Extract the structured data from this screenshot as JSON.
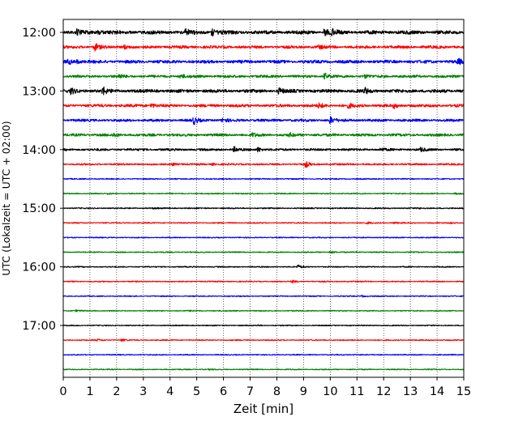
{
  "chart_data": {
    "type": "line",
    "chart_kind": "seismogram helicorder",
    "xlabel": "Zeit  [min]",
    "ylabel": "UTC (Lokalzeit = UTC + 02:00)",
    "xlim": [
      0,
      15
    ],
    "x_ticks": [
      "0",
      "1",
      "2",
      "3",
      "4",
      "5",
      "6",
      "7",
      "8",
      "9",
      "10",
      "11",
      "12",
      "13",
      "14",
      "15"
    ],
    "y_ticks": [
      "12:00",
      "13:00",
      "14:00",
      "15:00",
      "16:00",
      "17:00"
    ],
    "x_grid": "dotted vertical lines at every minute",
    "trace_colors": [
      "#000000",
      "#ff0000",
      "#0000ff",
      "#008000"
    ],
    "traces": [
      {
        "start": "12:00",
        "amplitude": 4.2,
        "events": [
          {
            "x": 0.5,
            "a": 3
          },
          {
            "x": 1.3,
            "a": 2.5
          },
          {
            "x": 4.6,
            "a": 3
          },
          {
            "x": 5.6,
            "a": 3
          },
          {
            "x": 9.8,
            "a": 3
          },
          {
            "x": 10.1,
            "a": 3
          }
        ]
      },
      {
        "start": "12:15",
        "amplitude": 3.2,
        "events": [
          {
            "x": 1.2,
            "a": 5
          },
          {
            "x": 2.3,
            "a": 3
          },
          {
            "x": 9.6,
            "a": 2
          }
        ]
      },
      {
        "start": "12:30",
        "amplitude": 3.6,
        "events": [
          {
            "x": 0.2,
            "a": 3
          },
          {
            "x": 0.5,
            "a": 2
          },
          {
            "x": 14.8,
            "a": 3
          }
        ]
      },
      {
        "start": "12:45",
        "amplitude": 3.0,
        "events": [
          {
            "x": 2.1,
            "a": 2.5
          },
          {
            "x": 4.4,
            "a": 3
          },
          {
            "x": 9.8,
            "a": 4
          },
          {
            "x": 11.3,
            "a": 2
          }
        ]
      },
      {
        "start": "13:00",
        "amplitude": 3.8,
        "events": [
          {
            "x": 0.3,
            "a": 3
          },
          {
            "x": 1.5,
            "a": 4
          },
          {
            "x": 8.1,
            "a": 3
          },
          {
            "x": 11.3,
            "a": 3
          }
        ]
      },
      {
        "start": "13:15",
        "amplitude": 3.2,
        "events": [
          {
            "x": 3.3,
            "a": 3
          },
          {
            "x": 9.6,
            "a": 3
          },
          {
            "x": 10.7,
            "a": 2.5
          },
          {
            "x": 12.4,
            "a": 2.5
          }
        ]
      },
      {
        "start": "13:30",
        "amplitude": 3.0,
        "events": [
          {
            "x": 4.9,
            "a": 5
          },
          {
            "x": 6,
            "a": 3
          },
          {
            "x": 10,
            "a": 5
          }
        ]
      },
      {
        "start": "13:45",
        "amplitude": 3.0,
        "events": [
          {
            "x": 1.9,
            "a": 2.5
          },
          {
            "x": 7.1,
            "a": 2.5
          },
          {
            "x": 8.5,
            "a": 2
          }
        ]
      },
      {
        "start": "14:00",
        "amplitude": 2.6,
        "events": [
          {
            "x": 6.4,
            "a": 4
          },
          {
            "x": 7.3,
            "a": 4
          },
          {
            "x": 11.9,
            "a": 2
          },
          {
            "x": 13.4,
            "a": 3
          }
        ]
      },
      {
        "start": "14:15",
        "amplitude": 2.0,
        "events": [
          {
            "x": 4.1,
            "a": 3
          },
          {
            "x": 5.6,
            "a": 2
          },
          {
            "x": 9.1,
            "a": 6
          }
        ]
      },
      {
        "start": "14:30",
        "amplitude": 1.3,
        "events": []
      },
      {
        "start": "14:45",
        "amplitude": 1.3,
        "events": [
          {
            "x": 1.7,
            "a": 2.5
          },
          {
            "x": 14.7,
            "a": 2
          }
        ]
      },
      {
        "start": "15:00",
        "amplitude": 1.4,
        "events": [
          {
            "x": 3.4,
            "a": 1.5
          },
          {
            "x": 13.3,
            "a": 1.5
          }
        ]
      },
      {
        "start": "15:15",
        "amplitude": 1.3,
        "events": [
          {
            "x": 11.4,
            "a": 2.5
          },
          {
            "x": 12.4,
            "a": 2.5
          },
          {
            "x": 14.5,
            "a": 2
          }
        ]
      },
      {
        "start": "15:30",
        "amplitude": 1.2,
        "events": []
      },
      {
        "start": "15:45",
        "amplitude": 1.3,
        "events": [
          {
            "x": 10,
            "a": 3
          },
          {
            "x": 11,
            "a": 1.5
          }
        ]
      },
      {
        "start": "16:00",
        "amplitude": 1.3,
        "events": [
          {
            "x": 8.8,
            "a": 6
          }
        ]
      },
      {
        "start": "16:15",
        "amplitude": 1.3,
        "events": [
          {
            "x": 8.6,
            "a": 4
          }
        ]
      },
      {
        "start": "16:30",
        "amplitude": 1.2,
        "events": [
          {
            "x": 11.2,
            "a": 3
          }
        ]
      },
      {
        "start": "16:45",
        "amplitude": 1.2,
        "events": [
          {
            "x": 0.5,
            "a": 2
          },
          {
            "x": 4.8,
            "a": 2
          }
        ]
      },
      {
        "start": "17:00",
        "amplitude": 1.2,
        "events": [
          {
            "x": 7.3,
            "a": 1.5
          }
        ]
      },
      {
        "start": "17:15",
        "amplitude": 1.3,
        "events": [
          {
            "x": 1.3,
            "a": 3
          },
          {
            "x": 2.2,
            "a": 3.5
          }
        ]
      },
      {
        "start": "17:30",
        "amplitude": 1.2,
        "events": [
          {
            "x": 10.9,
            "a": 1.5
          }
        ]
      },
      {
        "start": "17:45",
        "amplitude": 1.2,
        "events": [
          {
            "x": 5.5,
            "a": 1.5
          }
        ]
      }
    ]
  }
}
